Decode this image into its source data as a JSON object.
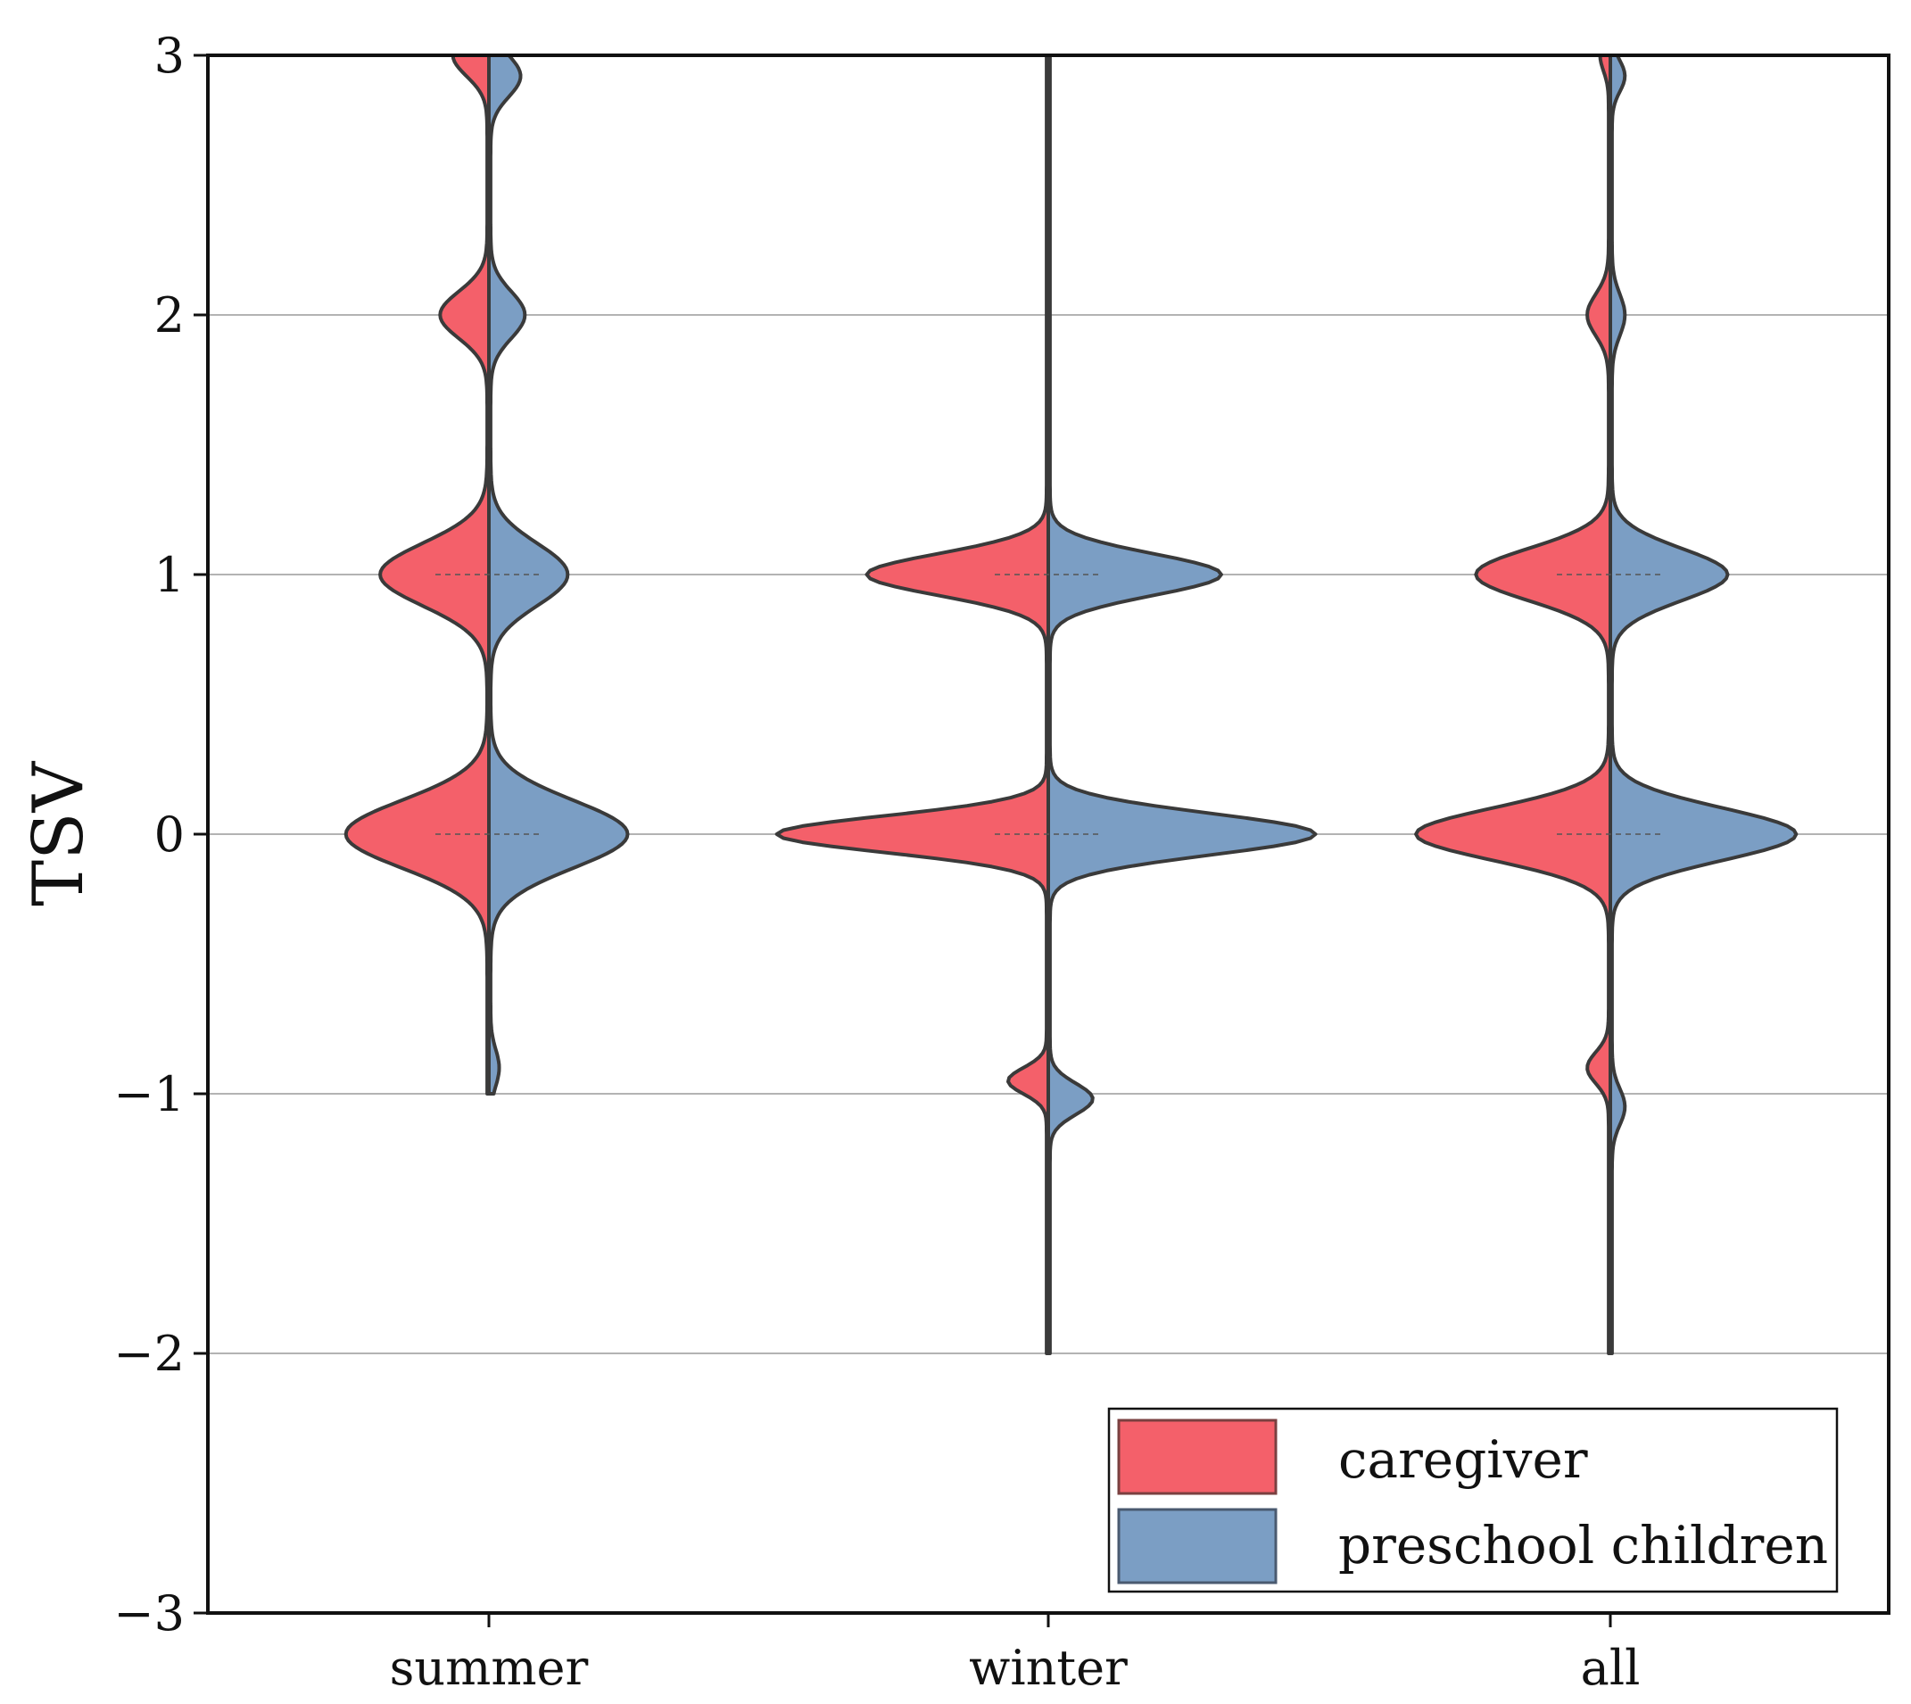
{
  "chart_data": {
    "type": "violin",
    "title": "",
    "xlabel": "",
    "ylabel": "TSV",
    "ylim": [
      -3,
      3
    ],
    "yticks": [
      3,
      2,
      1,
      0,
      -1,
      -2,
      -3
    ],
    "ytick_labels": [
      "3",
      "2",
      "1",
      "0",
      "−1",
      "−2",
      "−3"
    ],
    "categories": [
      "summer",
      "winter",
      "all"
    ],
    "grid": "horizontal",
    "legend_position": "bottom-right",
    "colors": {
      "caregiver": "#f4606a",
      "preschool children": "#7b9ec4",
      "outline": "#3a3a3a"
    },
    "series": [
      {
        "name": "caregiver",
        "side": "left",
        "density": [
          {
            "category": "summer",
            "bumps": [
              [
                3.0,
                0.08,
                0.08
              ],
              [
                2.0,
                0.11,
                0.09
              ],
              [
                1.0,
                0.25,
                0.12
              ],
              [
                0.0,
                0.33,
                0.13
              ]
            ],
            "y_range": [
              -1.0,
              3.0
            ]
          },
          {
            "category": "winter",
            "bumps": [
              [
                1.0,
                0.42,
                0.08
              ],
              [
                0.0,
                0.63,
                0.07
              ],
              [
                -0.95,
                0.09,
                0.05
              ]
            ],
            "y_range": [
              -2.0,
              3.0
            ]
          },
          {
            "category": "all",
            "bumps": [
              [
                3.0,
                0.02,
                0.06
              ],
              [
                2.0,
                0.05,
                0.08
              ],
              [
                1.0,
                0.31,
                0.1
              ],
              [
                0.0,
                0.45,
                0.1
              ],
              [
                -0.9,
                0.05,
                0.06
              ]
            ],
            "y_range": [
              -2.0,
              3.0
            ]
          }
        ]
      },
      {
        "name": "preschool children",
        "side": "right",
        "density": [
          {
            "category": "summer",
            "bumps": [
              [
                2.92,
                0.07,
                0.08
              ],
              [
                2.0,
                0.08,
                0.09
              ],
              [
                1.0,
                0.18,
                0.12
              ],
              [
                0.0,
                0.32,
                0.13
              ],
              [
                -0.9,
                0.02,
                0.07
              ]
            ],
            "y_range": [
              -1.0,
              3.0
            ]
          },
          {
            "category": "winter",
            "bumps": [
              [
                1.0,
                0.4,
                0.08
              ],
              [
                0.0,
                0.62,
                0.08
              ],
              [
                -1.02,
                0.1,
                0.06
              ]
            ],
            "y_range": [
              -2.0,
              3.0
            ]
          },
          {
            "category": "all",
            "bumps": [
              [
                2.92,
                0.03,
                0.06
              ],
              [
                2.0,
                0.03,
                0.08
              ],
              [
                1.0,
                0.27,
                0.1
              ],
              [
                0.0,
                0.43,
                0.1
              ],
              [
                -1.05,
                0.03,
                0.07
              ]
            ],
            "y_range": [
              -2.0,
              3.0
            ]
          }
        ]
      }
    ]
  }
}
